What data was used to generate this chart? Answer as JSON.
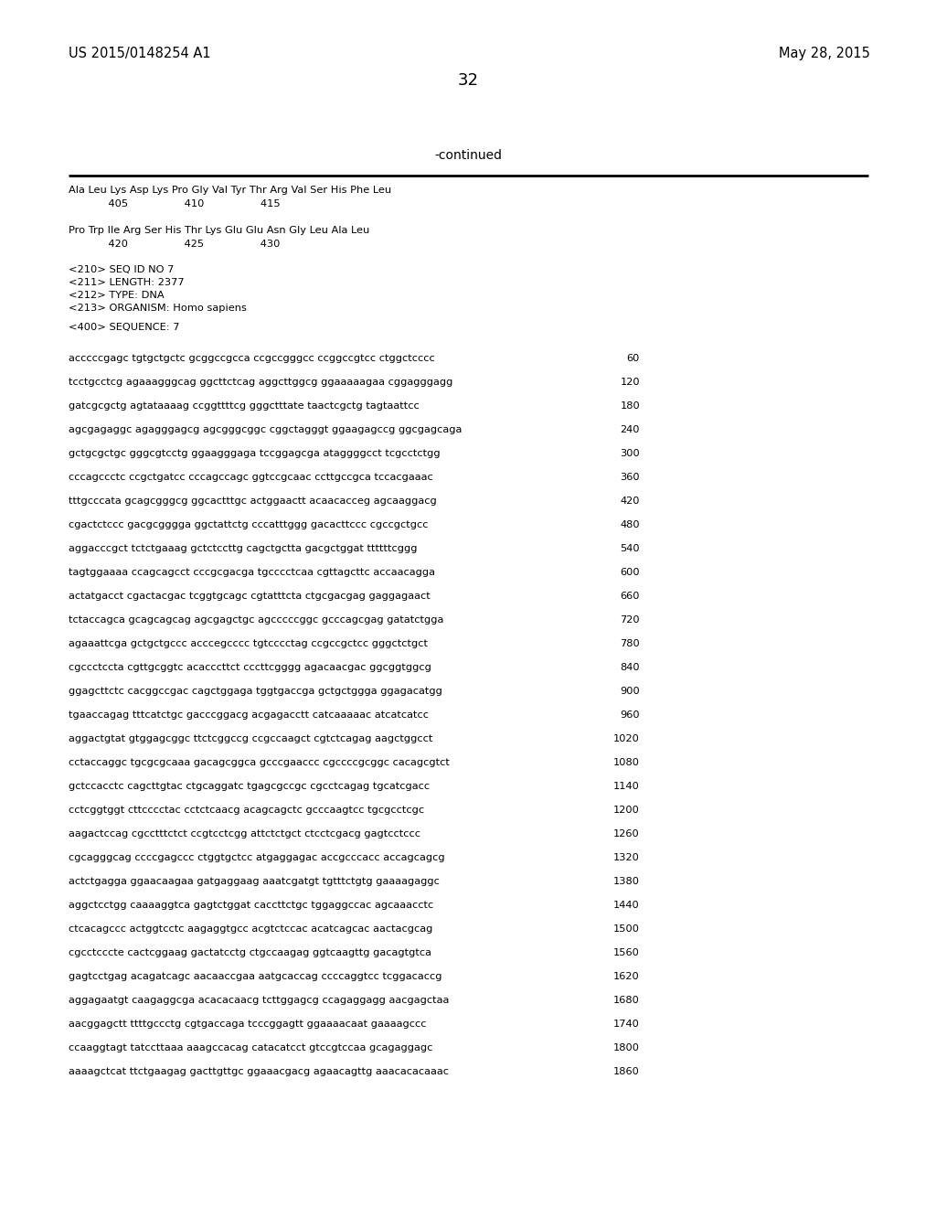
{
  "background_color": "#ffffff",
  "header_left": "US 2015/0148254 A1",
  "header_right": "May 28, 2015",
  "page_number": "32",
  "continued_label": "-continued",
  "monospace_font": "Courier New",
  "serif_font": "Times New Roman",
  "amino_lines": [
    "Ala Leu Lys Asp Lys Pro Gly Val Tyr Thr Arg Val Ser His Phe Leu",
    "            405                 410                 415",
    "",
    "Pro Trp Ile Arg Ser His Thr Lys Glu Glu Asn Gly Leu Ala Leu",
    "            420                 425                 430"
  ],
  "metadata_lines": [
    "<210> SEQ ID NO 7",
    "<211> LENGTH: 2377",
    "<212> TYPE: DNA",
    "<213> ORGANISM: Homo sapiens"
  ],
  "sequence_label": "<400> SEQUENCE: 7",
  "sequence_lines": [
    {
      "seq": "acccccgagc tgtgctgctc gcggccgcca ccgccgggcc ccggccgtcc ctggctcccc",
      "num": "60"
    },
    {
      "seq": "tcctgcctcg agaaagggcag ggcttctcag aggcttggcg ggaaaaagaa cggagggagg",
      "num": "120"
    },
    {
      "seq": "gatcgcgctg agtataaaag ccggttttcg gggctttate taactcgctg tagtaattcc",
      "num": "180"
    },
    {
      "seq": "agcgagaggc agagggagcg agcgggcggc cggctagggt ggaagagccg ggcgagcaga",
      "num": "240"
    },
    {
      "seq": "gctgcgctgc gggcgtcctg ggaagggaga tccggagcga ataggggcct tcgcctctgg",
      "num": "300"
    },
    {
      "seq": "cccagccctc ccgctgatcc cccagccagc ggtccgcaac ccttgccgca tccacgaaac",
      "num": "360"
    },
    {
      "seq": "tttgcccata gcagcgggcg ggcactttgc actggaactt acaacacceg agcaaggacg",
      "num": "420"
    },
    {
      "seq": "cgactctccc gacgcgggga ggctattctg cccatttggg gacacttccc cgccgctgcc",
      "num": "480"
    },
    {
      "seq": "aggacccgct tctctgaaag gctctccttg cagctgctta gacgctggat ttttttcggg",
      "num": "540"
    },
    {
      "seq": "tagtggaaaa ccagcagcct cccgcgacga tgcccctcaa cgttagcttc accaacagga",
      "num": "600"
    },
    {
      "seq": "actatgacct cgactacgac tcggtgcagc cgtatttcta ctgcgacgag gaggagaact",
      "num": "660"
    },
    {
      "seq": "tctaccagca gcagcagcag agcgagctgc agcccccggc gcccagcgag gatatctgga",
      "num": "720"
    },
    {
      "seq": "agaaattcga gctgctgccc acccegcccc tgtcccctag ccgccgctcc gggctctgct",
      "num": "780"
    },
    {
      "seq": "cgccctccta cgttgcggtc acacccttct cccttcgggg agacaacgac ggcggtggcg",
      "num": "840"
    },
    {
      "seq": "ggagcttctc cacggccgac cagctggaga tggtgaccga gctgctggga ggagacatgg",
      "num": "900"
    },
    {
      "seq": "tgaaccagag tttcatctgc gacccggacg acgagacctt catcaaaaac atcatcatcc",
      "num": "960"
    },
    {
      "seq": "aggactgtat gtggagcggc ttctcggccg ccgccaagct cgtctcagag aagctggcct",
      "num": "1020"
    },
    {
      "seq": "cctaccaggc tgcgcgcaaa gacagcggca gcccgaaccc cgccccgcggc cacagcgtct",
      "num": "1080"
    },
    {
      "seq": "gctccacctc cagcttgtac ctgcaggatc tgagcgccgc cgcctcagag tgcatcgacc",
      "num": "1140"
    },
    {
      "seq": "cctcggtggt cttcccctac cctctcaacg acagcagctc gcccaagtcc tgcgcctcgc",
      "num": "1200"
    },
    {
      "seq": "aagactccag cgcctttctct ccgtcctcgg attctctgct ctcctcgacg gagtcctccc",
      "num": "1260"
    },
    {
      "seq": "cgcagggcag ccccgagccc ctggtgctcc atgaggagac accgcccacc accagcagcg",
      "num": "1320"
    },
    {
      "seq": "actctgagga ggaacaagaa gatgaggaag aaatcgatgt tgtttctgtg gaaaagaggc",
      "num": "1380"
    },
    {
      "seq": "aggctcctgg caaaaggtca gagtctggat caccttctgc tggaggccac agcaaacctc",
      "num": "1440"
    },
    {
      "seq": "ctcacagccc actggtcctc aagaggtgcc acgtctccac acatcagcac aactacgcag",
      "num": "1500"
    },
    {
      "seq": "cgcctcccte cactcggaag gactatcctg ctgccaagag ggtcaagttg gacagtgtca",
      "num": "1560"
    },
    {
      "seq": "gagtcctgag acagatcagc aacaaccgaa aatgcaccag ccccaggtcc tcggacaccg",
      "num": "1620"
    },
    {
      "seq": "aggagaatgt caagaggcga acacacaacg tcttggagcg ccagaggagg aacgagctaa",
      "num": "1680"
    },
    {
      "seq": "aacggagctt ttttgccctg cgtgaccaga tcccggagtt ggaaaacaat gaaaagccc",
      "num": "1740"
    },
    {
      "seq": "ccaaggtagt tatccttaaa aaagccacag catacatcct gtccgtccaa gcagaggagc",
      "num": "1800"
    },
    {
      "seq": "aaaagctcat ttctgaagag gacttgttgc ggaaacgacg agaacagttg aaacacacaaac",
      "num": "1860"
    }
  ]
}
